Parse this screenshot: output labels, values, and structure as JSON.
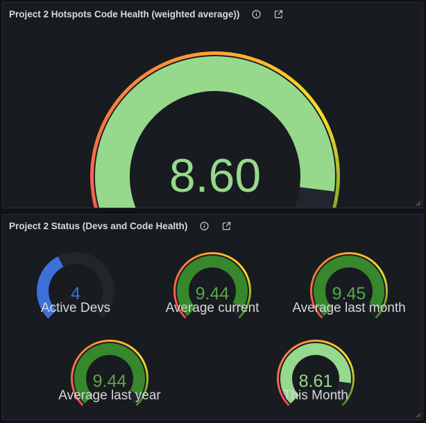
{
  "panels": [
    {
      "title": "Project 2 Hotspots Code Health (weighted average))"
    },
    {
      "title": "Project 2 Status (Devs and Code Health)"
    }
  ],
  "colors": {
    "background": "#111217",
    "panel": "#181b1f",
    "track": "#22252b",
    "good_light": "#96d98d",
    "good_dark": "#37872d",
    "blue": "#3d71d9",
    "red": "#f2495c",
    "orange": "#ff9830",
    "yellow": "#fade2a"
  },
  "main_gauge": {
    "value": "8.60",
    "fraction": 0.86,
    "color": "#96d98d"
  },
  "status_gauges": [
    {
      "value": "4",
      "label": "Active Devs",
      "fraction": 0.4,
      "color": "#3d71d9",
      "thresholds": false
    },
    {
      "value": "9.44",
      "label": "Average current",
      "fraction": 0.944,
      "color": "#37872d",
      "thresholds": true
    },
    {
      "value": "9.45",
      "label": "Average last month",
      "fraction": 0.945,
      "color": "#37872d",
      "thresholds": true
    },
    {
      "value": "9.44",
      "label": "Average last year",
      "fraction": 0.944,
      "color": "#37872d",
      "thresholds": true
    },
    {
      "value": "8.61",
      "label": "This Month",
      "fraction": 0.861,
      "color": "#96d98d",
      "thresholds": true
    }
  ]
}
